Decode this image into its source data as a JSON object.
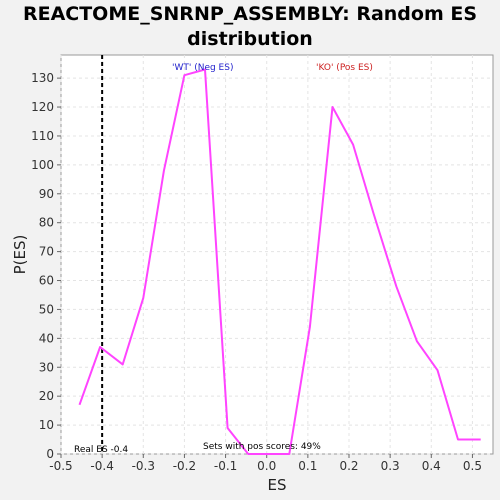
{
  "chart_data": {
    "type": "line",
    "title_line1": "REACTOME_SNRNP_ASSEMBLY: Random ES",
    "title_line2": "distribution",
    "xlabel": "ES",
    "ylabel": "P(ES)",
    "xlim": [
      -0.5,
      0.55
    ],
    "ylim": [
      0,
      138
    ],
    "xticks": [
      -0.5,
      -0.4,
      -0.3,
      -0.2,
      -0.1,
      0.0,
      0.1,
      0.2,
      0.3,
      0.4,
      0.5
    ],
    "xtick_labels": [
      "-0.5",
      "-0.4",
      "-0.3",
      "-0.2",
      "-0.1",
      "0.0",
      "0.1",
      "0.2",
      "0.3",
      "0.4",
      "0.5"
    ],
    "yticks": [
      0,
      10,
      20,
      30,
      40,
      50,
      60,
      70,
      80,
      90,
      100,
      110,
      120,
      130
    ],
    "grid": true,
    "series": [
      {
        "color": "#ff44ff",
        "x": [
          -0.455,
          -0.405,
          -0.35,
          -0.3,
          -0.25,
          -0.2,
          -0.15,
          -0.095,
          -0.045,
          0.0,
          0.055,
          0.105,
          0.16,
          0.21,
          0.26,
          0.315,
          0.365,
          0.415,
          0.465,
          0.52
        ],
        "y": [
          17,
          37,
          31,
          54,
          98,
          131,
          133,
          9,
          0,
          0,
          0,
          44,
          120,
          107,
          83,
          58,
          39,
          29,
          5,
          5
        ]
      }
    ],
    "real_es": -0.4,
    "real_es_label": "Real ES -0.4",
    "sets_label": "Sets with pos scores: 49%",
    "wt_label": "'WT' (Neg ES)",
    "ko_label": "'KO' (Pos ES)",
    "wt_color": "#2222cc",
    "ko_color": "#cc2222"
  }
}
